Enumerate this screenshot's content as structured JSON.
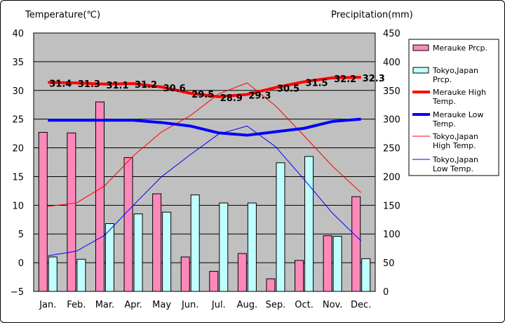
{
  "chart_data": {
    "type": "bar+line",
    "ylabel_left": "Temperature(℃)",
    "ylabel_right": "Precipitation(mm)",
    "ylim_left": [
      -5,
      40
    ],
    "ylim_right": [
      0,
      450
    ],
    "yticks_left": [
      "40",
      "35",
      "30",
      "25",
      "20",
      "15",
      "10",
      "5",
      "0",
      "−5"
    ],
    "yticks_right": [
      "450",
      "400",
      "350",
      "300",
      "250",
      "200",
      "150",
      "100",
      "50",
      "0"
    ],
    "categories": [
      "Jan.",
      "Feb.",
      "Mar.",
      "Apr.",
      "May",
      "Jun.",
      "Jul.",
      "Aug.",
      "Sep.",
      "Oct.",
      "Nov.",
      "Dec."
    ],
    "grid": true,
    "legend_position": "right",
    "bar_series": [
      {
        "name": "Merauke Prcp.",
        "color": "#ff88bb",
        "values": [
          277,
          276,
          330,
          233,
          170,
          60,
          35,
          66,
          22,
          54,
          97,
          165
        ]
      },
      {
        "name": "Tokyo,Japan Prcp.",
        "color": "#c0ffff",
        "values": [
          60,
          56,
          118,
          135,
          138,
          168,
          154,
          154,
          224,
          235,
          96,
          57
        ]
      }
    ],
    "line_series": [
      {
        "name": "Merauke High Temp.",
        "color": "#ff0000",
        "width": 4,
        "values": [
          31.4,
          31.3,
          31.1,
          31.2,
          30.6,
          29.5,
          28.9,
          29.3,
          30.5,
          31.5,
          32.2,
          32.3
        ],
        "labels": [
          "31.4",
          "31.3",
          "31.1",
          "31.2",
          "30.6",
          "29.5",
          "28.9",
          "29.3",
          "30.5",
          "31.5",
          "32.2",
          "32.3"
        ]
      },
      {
        "name": "Merauke Low Temp.",
        "color": "#0000ff",
        "width": 4,
        "values": [
          24.8,
          24.8,
          24.8,
          24.8,
          24.4,
          23.8,
          22.6,
          22.2,
          22.8,
          23.4,
          24.6,
          25.0
        ]
      },
      {
        "name": "Tokyo,Japan High Temp.",
        "color": "#ff0000",
        "width": 1,
        "values": [
          9.8,
          10.4,
          13.4,
          18.6,
          22.8,
          25.6,
          29.4,
          31.3,
          27.3,
          22.1,
          16.8,
          12.2
        ]
      },
      {
        "name": "Tokyo,Japan Low Temp.",
        "color": "#0000ff",
        "width": 1,
        "values": [
          1.2,
          2.0,
          4.8,
          10.0,
          15.0,
          18.8,
          22.4,
          23.8,
          20.2,
          14.5,
          8.6,
          3.8
        ]
      }
    ],
    "legend": [
      {
        "kind": "bar",
        "lines": [
          "Merauke Prcp."
        ]
      },
      {
        "kind": "bar",
        "lines": [
          "Tokyo,Japan",
          "Prcp."
        ]
      },
      {
        "kind": "line",
        "lines": [
          "Merauke High",
          "Temp."
        ]
      },
      {
        "kind": "line",
        "lines": [
          "Merauke Low",
          "Temp."
        ]
      },
      {
        "kind": "line",
        "lines": [
          "Tokyo,Japan",
          "High Temp."
        ]
      },
      {
        "kind": "line",
        "lines": [
          "Tokyo,Japan",
          "Low Temp."
        ]
      }
    ]
  }
}
